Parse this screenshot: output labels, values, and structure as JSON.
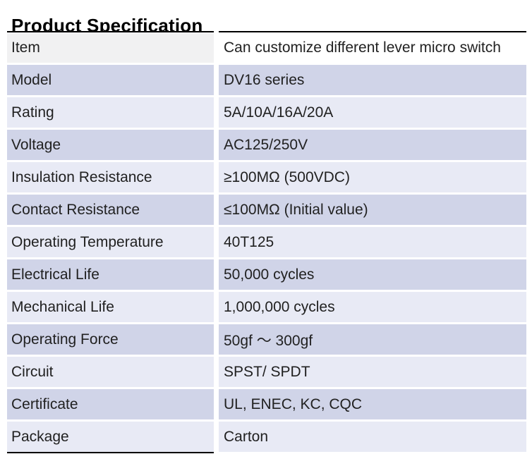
{
  "page": {
    "title": "Product Specification"
  },
  "table": {
    "colors": {
      "first_row_label_bg": "#f1f1f2",
      "first_row_value_bg": "#ffffff",
      "row_medium_bg": "#d0d4e8",
      "row_light_bg": "#e8eaf5",
      "border_color": "#000000",
      "text_color": "#212121"
    },
    "rows": [
      {
        "label": "Item",
        "value": "Can customize different lever micro switch"
      },
      {
        "label": "Model",
        "value": "DV16 series"
      },
      {
        "label": "Rating",
        "value": "5A/10A/16A/20A"
      },
      {
        "label": "Voltage",
        "value": "AC125/250V"
      },
      {
        "label": "Insulation Resistance",
        "value": "≥100MΩ (500VDC)"
      },
      {
        "label": "Contact Resistance",
        "value": "≤100MΩ (Initial value)"
      },
      {
        "label": "Operating Temperature",
        "value": "40T125"
      },
      {
        "label": "Electrical Life",
        "value": "50,000 cycles"
      },
      {
        "label": "Mechanical Life",
        "value": "1,000,000 cycles"
      },
      {
        "label": "Operating Force",
        "value": "50gf ～ 300gf"
      },
      {
        "label": "Circuit",
        "value": "SPST/ SPDT"
      },
      {
        "label": "Certificate",
        "value": "UL, ENEC, KC, CQC"
      },
      {
        "label": "Package",
        "value": "Carton"
      }
    ]
  }
}
